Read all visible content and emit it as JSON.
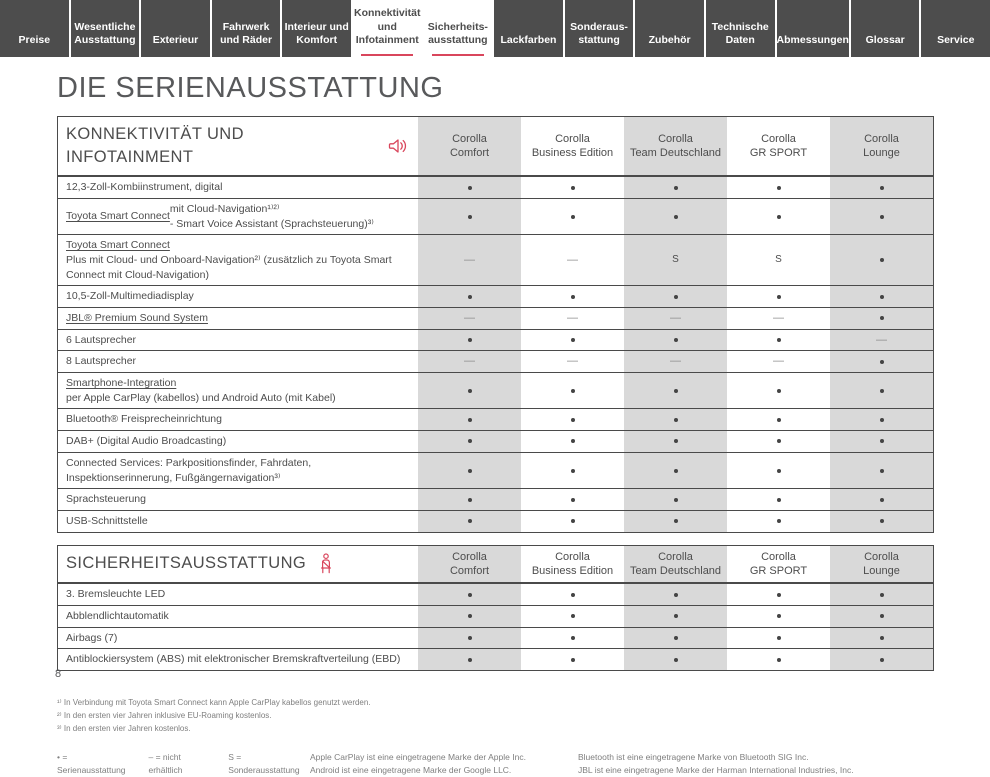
{
  "colors": {
    "accent_red": "#d9465c",
    "tab_background": "#4d4d4d",
    "column_stripe": "#d9d9d9",
    "table_border": "#4a4a4a",
    "text": "#4d4d4d"
  },
  "nav": {
    "tabs": [
      {
        "id": "preise",
        "label": "Preise",
        "active": false
      },
      {
        "id": "wesentliche-ausstattung",
        "label": "Wesentliche\nAusstattung",
        "active": false
      },
      {
        "id": "exterieur",
        "label": "Exterieur",
        "active": false
      },
      {
        "id": "fahrwerk-und-raeder",
        "label": "Fahrwerk\nund Räder",
        "active": false
      },
      {
        "id": "interieur-und-komfort",
        "label": "Interieur und\nKomfort",
        "active": false
      },
      {
        "id": "konnektivitaet-und-infotainment",
        "label": "Konnektivität\nund\nInfotainment",
        "active": true
      },
      {
        "id": "sicherheitsausstattung",
        "label": "Sicherheits-\nausstattung",
        "active": true
      },
      {
        "id": "lackfarben",
        "label": "Lackfarben",
        "active": false
      },
      {
        "id": "sonderausstattung",
        "label": "Sonderaus-\nstattung",
        "active": false
      },
      {
        "id": "zubehoer",
        "label": "Zubehör",
        "active": false
      },
      {
        "id": "technische-daten",
        "label": "Technische\nDaten",
        "active": false
      },
      {
        "id": "abmessungen",
        "label": "Abmessungen",
        "active": false
      },
      {
        "id": "glossar",
        "label": "Glossar",
        "active": false
      },
      {
        "id": "service",
        "label": "Service",
        "active": false
      }
    ]
  },
  "page": {
    "title": "DIE SERIENAUSSTATTUNG",
    "page_number": "8"
  },
  "tables": [
    {
      "id": "konnektivitaet",
      "title": "KONNEKTIVITÄT UND INFOTAINMENT",
      "icon": "speaker-icon",
      "columns": [
        "Corolla\nComfort",
        "Corolla\nBusiness Edition",
        "Corolla\nTeam Deutschland",
        "Corolla\nGR SPORT",
        "Corolla\nLounge"
      ],
      "rows": [
        {
          "link": "",
          "label": "12,3-Zoll-Kombiinstrument, digital",
          "marks": [
            "dot",
            "dot",
            "dot",
            "dot",
            "dot"
          ]
        },
        {
          "link": "Toyota Smart Connect",
          "label": " mit Cloud-Navigation¹⁾²⁾\n- Smart Voice Assistant (Sprachsteuerung)³⁾",
          "marks": [
            "dot",
            "dot",
            "dot",
            "dot",
            "dot"
          ]
        },
        {
          "link": "Toyota Smart Connect",
          "label": " Plus mit Cloud- und Onboard-Navigation²⁾ (zusätzlich zu Toyota Smart Connect mit Cloud-Navigation)",
          "marks": [
            "dash",
            "dash",
            "S",
            "S",
            "dot"
          ]
        },
        {
          "link": "",
          "label": "10,5-Zoll-Multimediadisplay",
          "marks": [
            "dot",
            "dot",
            "dot",
            "dot",
            "dot"
          ]
        },
        {
          "link": "JBL® Premium Sound System",
          "label": "",
          "marks": [
            "dash",
            "dash",
            "dash",
            "dash",
            "dot"
          ]
        },
        {
          "link": "",
          "label": "6 Lautsprecher",
          "marks": [
            "dot",
            "dot",
            "dot",
            "dot",
            "dash"
          ]
        },
        {
          "link": "",
          "label": "8 Lautsprecher",
          "marks": [
            "dash",
            "dash",
            "dash",
            "dash",
            "dot"
          ]
        },
        {
          "link": "Smartphone-Integration",
          "label": " per Apple CarPlay (kabellos) und Android Auto (mit Kabel)",
          "marks": [
            "dot",
            "dot",
            "dot",
            "dot",
            "dot"
          ]
        },
        {
          "link": "",
          "label": "Bluetooth® Freisprecheinrichtung",
          "marks": [
            "dot",
            "dot",
            "dot",
            "dot",
            "dot"
          ]
        },
        {
          "link": "",
          "label": "DAB+ (Digital Audio Broadcasting)",
          "marks": [
            "dot",
            "dot",
            "dot",
            "dot",
            "dot"
          ]
        },
        {
          "link": "",
          "label": "Connected Services: Parkpositionsfinder, Fahrdaten, Inspektionserinnerung, Fußgängernavigation³⁾",
          "marks": [
            "dot",
            "dot",
            "dot",
            "dot",
            "dot"
          ]
        },
        {
          "link": "",
          "label": "Sprachsteuerung",
          "marks": [
            "dot",
            "dot",
            "dot",
            "dot",
            "dot"
          ]
        },
        {
          "link": "",
          "label": "USB-Schnittstelle",
          "marks": [
            "dot",
            "dot",
            "dot",
            "dot",
            "dot"
          ]
        }
      ]
    },
    {
      "id": "sicherheit",
      "title": "SICHERHEITSAUSSTATTUNG",
      "icon": "seatbelt-icon",
      "columns": [
        "Corolla\nComfort",
        "Corolla\nBusiness Edition",
        "Corolla\nTeam Deutschland",
        "Corolla\nGR SPORT",
        "Corolla\nLounge"
      ],
      "rows": [
        {
          "link": "",
          "label": "3. Bremsleuchte LED",
          "marks": [
            "dot",
            "dot",
            "dot",
            "dot",
            "dot"
          ]
        },
        {
          "link": "",
          "label": "Abblendlichtautomatik",
          "marks": [
            "dot",
            "dot",
            "dot",
            "dot",
            "dot"
          ]
        },
        {
          "link": "",
          "label": "Airbags (7)",
          "marks": [
            "dot",
            "dot",
            "dot",
            "dot",
            "dot"
          ]
        },
        {
          "link": "",
          "label": "Antiblockiersystem (ABS) mit elektronischer Bremskraftverteilung (EBD)",
          "marks": [
            "dot",
            "dot",
            "dot",
            "dot",
            "dot"
          ]
        }
      ]
    }
  ],
  "footnotes": [
    "¹⁾ In Verbindung mit Toyota Smart Connect kann Apple CarPlay kabellos genutzt werden.",
    "²⁾ In den ersten vier Jahren inklusive EU-Roaming kostenlos.",
    "³⁾ In den ersten vier Jahren kostenlos."
  ],
  "legend": {
    "items": [
      "• = Serienausstattung",
      "– = nicht erhältlich",
      "S = Sonderausstattung"
    ]
  },
  "trademarks": {
    "apple_google": [
      "Apple CarPlay ist eine eingetragene Marke der Apple Inc.",
      "Android ist eine eingetragene Marke der Google LLC."
    ],
    "bluetooth_jbl": [
      "Bluetooth ist eine eingetragene Marke von Bluetooth SIG Inc.",
      "JBL ist eine eingetragene Marke der Harman International Industries, Inc."
    ]
  }
}
